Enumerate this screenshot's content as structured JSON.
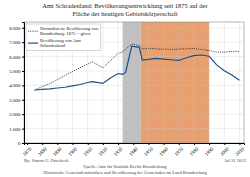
{
  "chart_data": {
    "type": "line",
    "title": "Amt Schradenland: Bevölkerungsentwicklung seit 1875 auf der\nFläche der heutigen Gebietskörperschaft",
    "x": [
      1875,
      1880,
      1885,
      1890,
      1895,
      1900,
      1905,
      1910,
      1913,
      1920,
      1925,
      1930,
      1933,
      1935,
      1939,
      1944,
      1946,
      1950,
      1955,
      1960,
      1965,
      1970,
      1975,
      1980,
      1985,
      1990,
      1995,
      2000,
      2005,
      2010
    ],
    "series": [
      {
        "name": "Normalisierte Bevölkerung von\nBrandenburg: 1875 = given",
        "color": "#222222",
        "line_style": "dotted",
        "values": [
          3680,
          3920,
          4120,
          4400,
          4680,
          4960,
          5230,
          5480,
          5630,
          5220,
          5720,
          6230,
          6320,
          6520,
          6870,
          6780,
          6530,
          6570,
          6540,
          6510,
          6500,
          6520,
          6540,
          6560,
          6490,
          6420,
          6310,
          6310,
          6360,
          6360
        ]
      },
      {
        "name": "Bevölkerung von Amt\nSchradenland",
        "color": "#1a4e8c",
        "line_style": "solid",
        "values": [
          3680,
          3720,
          3760,
          3820,
          3870,
          3960,
          4060,
          4200,
          4260,
          4140,
          4520,
          4820,
          4760,
          4920,
          6720,
          6640,
          5760,
          5800,
          5870,
          5820,
          5780,
          5730,
          5920,
          6070,
          6110,
          6020,
          5420,
          5020,
          4720,
          4360
        ]
      }
    ],
    "regions": [
      {
        "start": 1933,
        "end": 1945,
        "color": "#c0c0c0"
      },
      {
        "start": 1945,
        "end": 1990,
        "color": "#e8a070"
      }
    ],
    "xlim": [
      1868,
      2013
    ],
    "xticks": [
      1870,
      1880,
      1890,
      1900,
      1910,
      1920,
      1930,
      1940,
      1950,
      1960,
      1970,
      1980,
      1990,
      2000,
      2010
    ],
    "ylim": [
      0,
      8400
    ],
    "yticks": [
      0,
      {
        "value": 1000,
        "label": "1.000"
      },
      {
        "value": 2000,
        "label": "2.000"
      },
      {
        "value": 3000,
        "label": "3.000"
      },
      {
        "value": 4000,
        "label": "4.000"
      },
      {
        "value": 5000,
        "label": "5.000"
      },
      {
        "value": 6000,
        "label": "6.000"
      },
      {
        "value": 7000,
        "label": "7.000"
      },
      {
        "value": 8000,
        "label": "8.000"
      }
    ],
    "grid": true,
    "legend": "upper left",
    "annotations": [
      "By: Simon G. Otterbeck",
      "Quelle: Amt für Statistik Berlin-Brandenburg",
      "Historische Gemeindestatistiken und Bevölkerung der Gemeinden im Land Brandenburg",
      "Jul 31 2012"
    ]
  }
}
